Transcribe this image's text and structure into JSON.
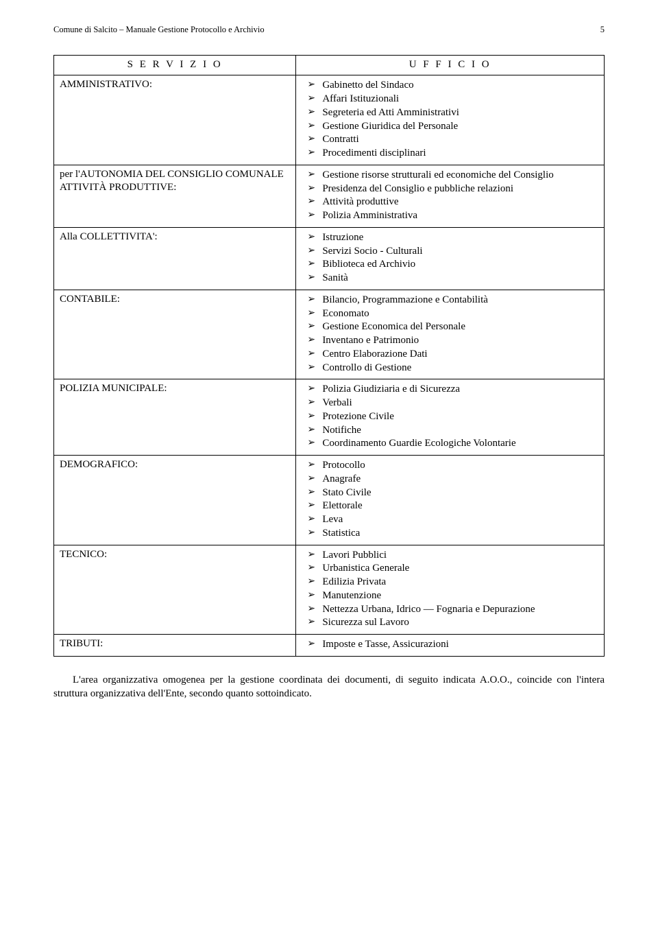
{
  "header": {
    "left": "Comune di Salcito – Manuale Gestione Protocollo e Archivio",
    "page_number": "5"
  },
  "table": {
    "head_servizio": "S E R V I Z I O",
    "head_ufficio": "U F F I C I O",
    "rows": [
      {
        "servizio": "AMMINISTRATIVO:",
        "uffici": [
          "Gabinetto del Sindaco",
          "Affari Istituzionali",
          "Segreteria ed Atti Amministrativi",
          "Gestione Giuridica del Personale",
          "Contratti",
          "Procedimenti disciplinari"
        ]
      },
      {
        "servizio": "per l'AUTONOMIA DEL CONSIGLIO COMUNALE ATTIVITÀ PRODUTTIVE:",
        "uffici": [
          "Gestione risorse strutturali ed economiche del Consiglio",
          "Presidenza del Consiglio e pubbliche relazioni",
          "Attività produttive",
          "Polizia Amministrativa"
        ]
      },
      {
        "servizio": "Alla COLLETTIVITA':",
        "uffici": [
          "Istruzione",
          "Servizi Socio - Culturali",
          "Biblioteca ed Archivio",
          "Sanità"
        ]
      },
      {
        "servizio": "CONTABILE:",
        "uffici": [
          "Bilancio, Programmazione e Contabilità",
          "Economato",
          "Gestione Economica del Personale",
          "Inventano e Patrimonio",
          "Centro Elaborazione Dati",
          "Controllo di Gestione"
        ]
      },
      {
        "servizio": "POLIZIA MUNICIPALE:",
        "uffici": [
          "Polizia Giudiziaria e di Sicurezza",
          "Verbali",
          "Protezione Civile",
          "Notifiche",
          "Coordinamento Guardie Ecologiche Volontarie"
        ]
      },
      {
        "servizio": "DEMOGRAFICO:",
        "uffici": [
          "Protocollo",
          "Anagrafe",
          "Stato Civile",
          "Elettorale",
          "Leva",
          "Statistica"
        ]
      },
      {
        "servizio": "TECNICO:",
        "uffici": [
          "Lavori Pubblici",
          "Urbanistica Generale",
          "Edilizia Privata",
          "Manutenzione",
          "Nettezza Urbana, Idrico — Fognaria e Depurazione",
          "Sicurezza sul Lavoro"
        ]
      },
      {
        "servizio": "TRIBUTI:",
        "uffici": [
          "Imposte e Tasse,  Assicurazioni"
        ]
      }
    ]
  },
  "footer": {
    "p1": "L'area organizzativa omogenea per la gestione coordinata dei documenti, di seguito indicata A.O.O., coincide con l'intera struttura organizzativa dell'Ente, secondo quanto sottoindicato."
  }
}
